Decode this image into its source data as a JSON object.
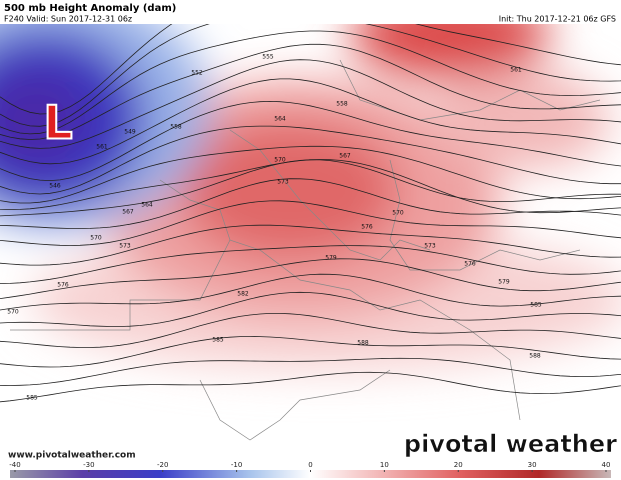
{
  "header": {
    "title": "500 mb Height Anomaly (dam)",
    "valid": "F240 Valid: Sun 2017-12-31 06z",
    "init": "Init: Thu 2017-12-21 06z GFS"
  },
  "map": {
    "low_label": "L",
    "contour_labels": [
      552,
      555,
      558,
      561,
      564,
      567,
      570,
      573,
      576,
      579,
      582,
      585,
      588,
      585,
      588,
      570,
      573,
      576,
      579,
      576,
      573,
      570,
      585,
      570,
      549,
      546,
      567,
      564,
      561,
      558
    ]
  },
  "footer": {
    "website": "www.pivotalweather.com",
    "logo": "pivotal weather"
  },
  "colorbar": {
    "ticks": [
      -40,
      -30,
      -20,
      -10,
      0,
      10,
      20,
      30,
      40
    ]
  }
}
